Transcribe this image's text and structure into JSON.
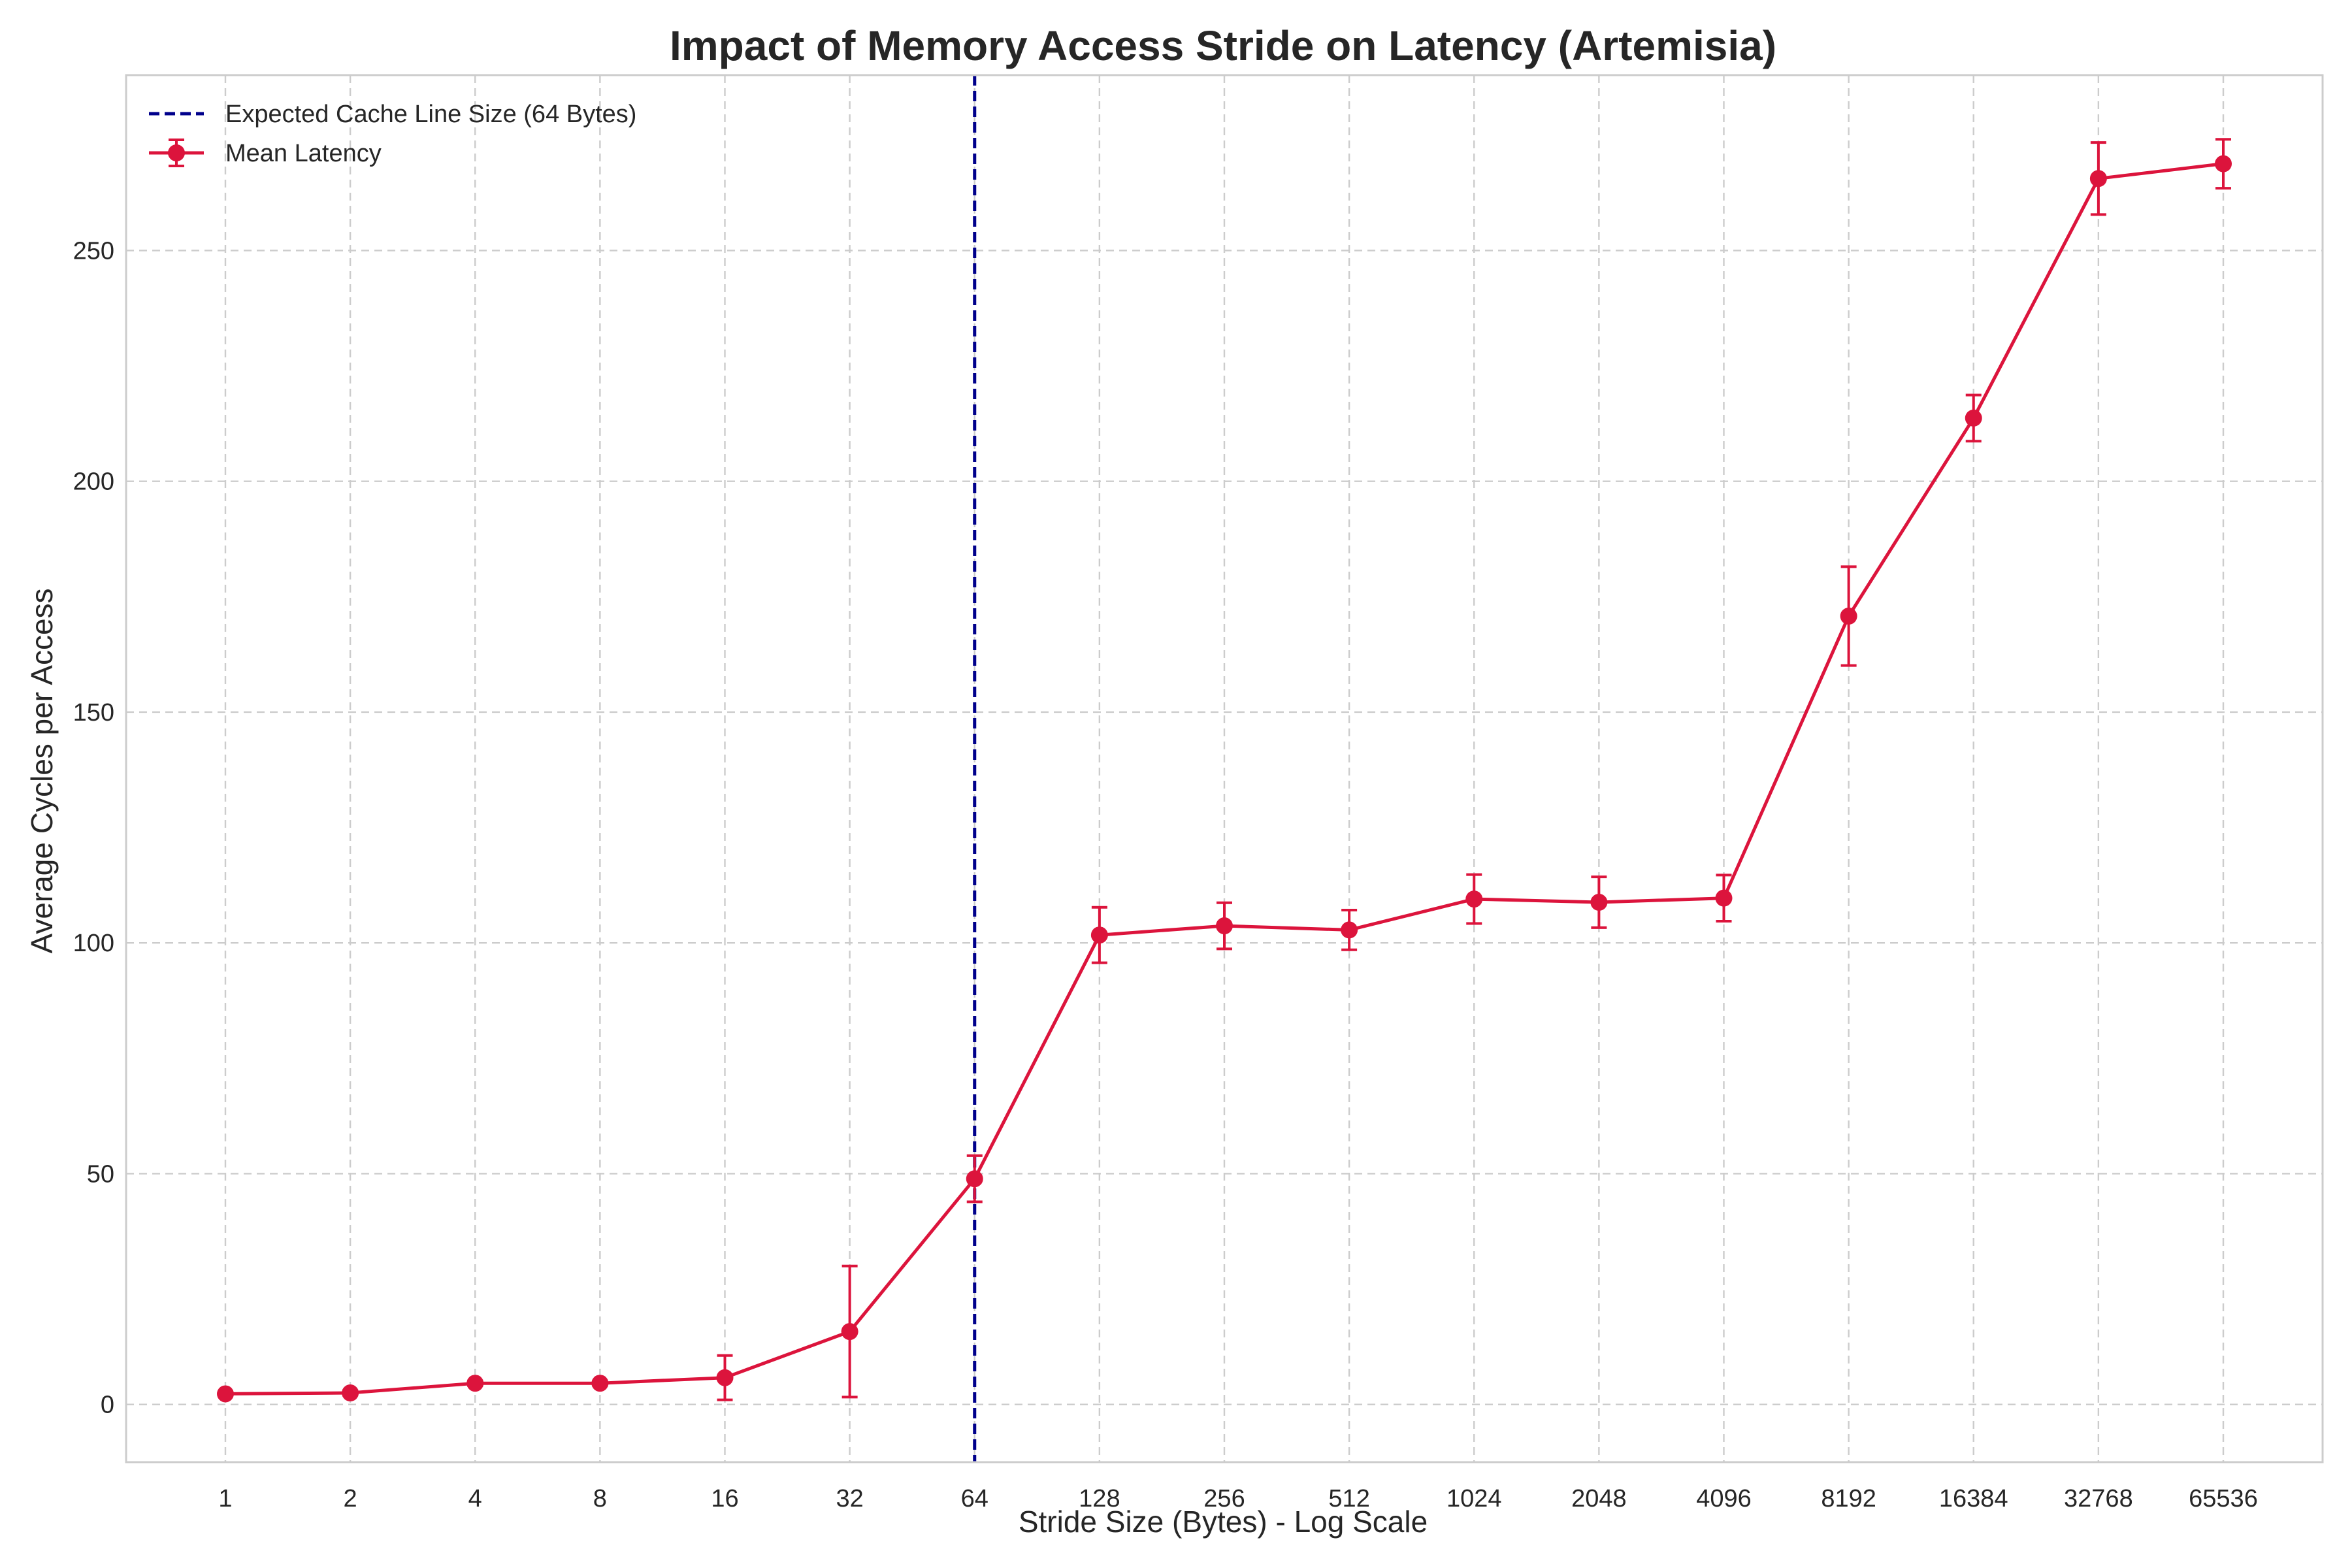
{
  "chart_data": {
    "type": "line",
    "title": "Impact of Memory Access Stride on Latency (Artemisia)",
    "xlabel": "Stride Size (Bytes) - Log Scale",
    "ylabel": "Average Cycles per Access",
    "x_scale": "log2",
    "x": [
      1,
      2,
      4,
      8,
      16,
      32,
      64,
      128,
      256,
      512,
      1024,
      2048,
      4096,
      8192,
      16384,
      32768,
      65536
    ],
    "x_tick_labels": [
      "1",
      "2",
      "4",
      "8",
      "16",
      "32",
      "64",
      "128",
      "256",
      "512",
      "1024",
      "2048",
      "4096",
      "8192",
      "16384",
      "32768",
      "65536"
    ],
    "ylim": [
      -12.5,
      288
    ],
    "y_ticks": [
      0,
      50,
      100,
      150,
      200,
      250
    ],
    "y_tick_labels": [
      "0",
      "50",
      "100",
      "150",
      "200",
      "250"
    ],
    "grid": true,
    "legend_position": "top-left",
    "series": [
      {
        "name": "Mean Latency",
        "color": "#dc143c",
        "values": [
          2.3,
          2.5,
          4.6,
          4.6,
          5.8,
          15.8,
          48.9,
          101.7,
          103.7,
          102.8,
          109.5,
          108.8,
          109.7,
          170.8,
          213.7,
          265.6,
          268.8
        ],
        "error": [
          0.5,
          0.5,
          0.5,
          0.5,
          4.8,
          14.2,
          5.0,
          6.0,
          5.0,
          4.3,
          5.3,
          5.5,
          5.0,
          10.7,
          5.0,
          7.8,
          5.3
        ]
      }
    ],
    "reference_lines": [
      {
        "name": "Expected Cache Line Size (64 Bytes)",
        "x": 64,
        "color": "#00008b",
        "style": "dashed"
      }
    ]
  }
}
